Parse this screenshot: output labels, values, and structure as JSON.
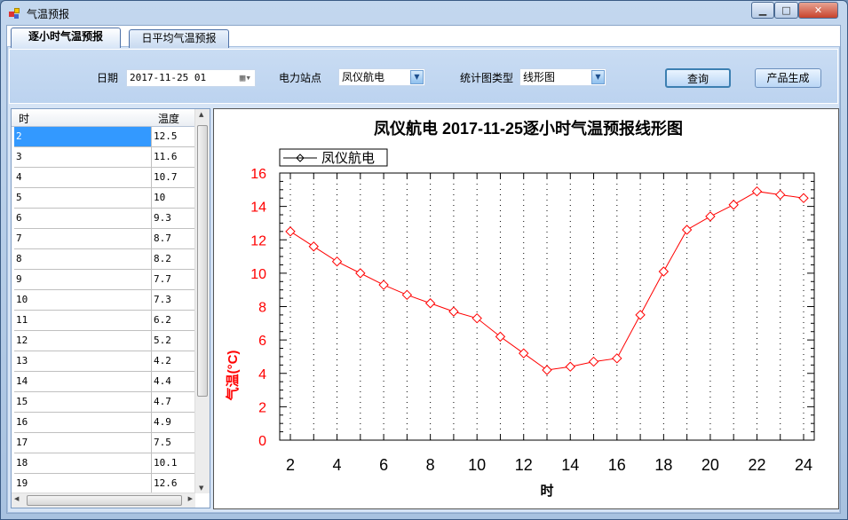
{
  "window": {
    "title": "气温预报",
    "minimize": "▁",
    "maximize": "□",
    "close": "✕"
  },
  "tabs": [
    {
      "label": "逐小时气温预报",
      "active": true
    },
    {
      "label": "日平均气温预报",
      "active": false
    }
  ],
  "toolbar": {
    "date_label": "日期",
    "date_value": "2017-11-25 01",
    "station_label": "电力站点",
    "station_value": "凤仪航电",
    "chart_type_label": "统计图类型",
    "chart_type_value": "线形图",
    "query_button": "查询",
    "generate_button": "产品生成"
  },
  "table": {
    "headers": [
      "时",
      "温度"
    ],
    "rows": [
      [
        "2",
        "12.5"
      ],
      [
        "3",
        "11.6"
      ],
      [
        "4",
        "10.7"
      ],
      [
        "5",
        "10"
      ],
      [
        "6",
        "9.3"
      ],
      [
        "7",
        "8.7"
      ],
      [
        "8",
        "8.2"
      ],
      [
        "9",
        "7.7"
      ],
      [
        "10",
        "7.3"
      ],
      [
        "11",
        "6.2"
      ],
      [
        "12",
        "5.2"
      ],
      [
        "13",
        "4.2"
      ],
      [
        "14",
        "4.4"
      ],
      [
        "15",
        "4.7"
      ],
      [
        "16",
        "4.9"
      ],
      [
        "17",
        "7.5"
      ],
      [
        "18",
        "10.1"
      ],
      [
        "19",
        "12.6"
      ]
    ],
    "selected_row": 0
  },
  "chart_data": {
    "type": "line",
    "title": "凤仪航电 2017-11-25逐小时气温预报线形图",
    "xlabel": "时",
    "ylabel": "气温(°C)",
    "legend": {
      "position": "top-left"
    },
    "series": [
      {
        "name": "凤仪航电",
        "color": "#ff0000",
        "marker": "diamond",
        "x": [
          2,
          3,
          4,
          5,
          6,
          7,
          8,
          9,
          10,
          11,
          12,
          13,
          14,
          15,
          16,
          17,
          18,
          19,
          20,
          21,
          22,
          23,
          24
        ],
        "y": [
          12.5,
          11.6,
          10.7,
          10,
          9.3,
          8.7,
          8.2,
          7.7,
          7.3,
          6.2,
          5.2,
          4.2,
          4.4,
          4.7,
          4.9,
          7.5,
          10.1,
          12.6,
          13.4,
          14.1,
          14.9,
          14.7,
          14.5
        ]
      }
    ],
    "xlim": [
      2,
      24
    ],
    "ylim": [
      0,
      16
    ],
    "xticks": [
      "2",
      "4",
      "6",
      "8",
      "10",
      "12",
      "14",
      "16",
      "18",
      "20",
      "22",
      "24"
    ],
    "yticks": [
      "0",
      "2",
      "4",
      "6",
      "8",
      "10",
      "12",
      "14",
      "16"
    ],
    "grid": "vertical dotted"
  }
}
